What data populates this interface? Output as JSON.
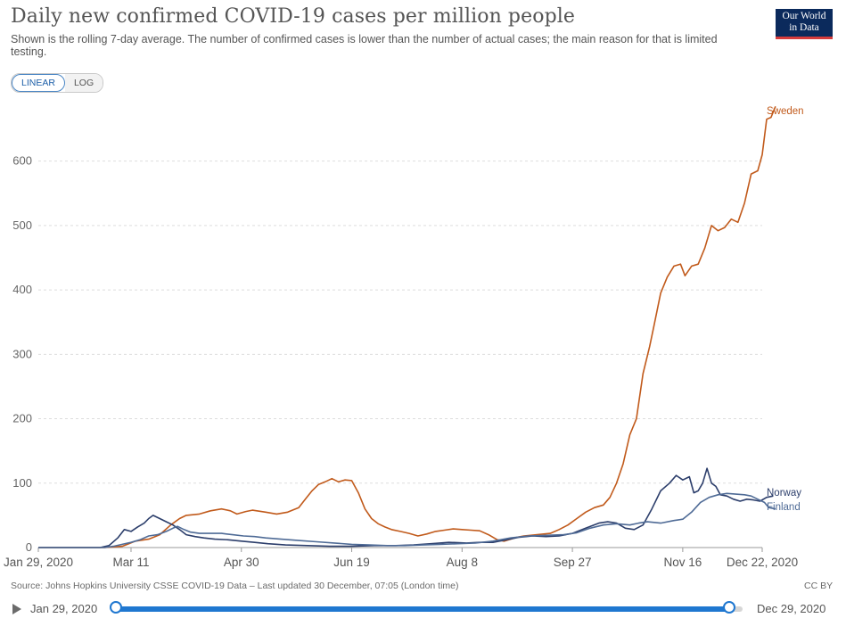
{
  "header": {
    "title": "Daily new confirmed COVID-19 cases per million people",
    "subtitle": "Shown is the rolling 7-day average. The number of confirmed cases is lower than the number of actual cases; the main reason for that is limited testing.",
    "logo_line1": "Our World",
    "logo_line2": "in Data",
    "logo_colors": {
      "background": "#0b2a5c",
      "stripe": "#d63c3c"
    }
  },
  "scale_toggle": {
    "linear_label": "LINEAR",
    "log_label": "LOG",
    "selected": "LINEAR"
  },
  "footer": {
    "source": "Source: Johns Hopkins University CSSE COVID-19 Data – Last updated 30 December, 07:05 (London time)",
    "license": "CC BY"
  },
  "timeline": {
    "start_label": "Jan 29, 2020",
    "end_label": "Dec 29, 2020",
    "play_icon": "play-icon"
  },
  "chart_data": {
    "type": "line",
    "title": "Daily new confirmed COVID-19 cases per million people",
    "xlabel": "",
    "ylabel": "",
    "ylim": [
      0,
      680
    ],
    "y_ticks": [
      0,
      100,
      200,
      300,
      400,
      500,
      600
    ],
    "x_ticks": [
      {
        "day": 0,
        "label": "Jan 29, 2020"
      },
      {
        "day": 42,
        "label": "Mar 11"
      },
      {
        "day": 92,
        "label": "Apr 30"
      },
      {
        "day": 142,
        "label": "Jun 19"
      },
      {
        "day": 192,
        "label": "Aug 8"
      },
      {
        "day": 242,
        "label": "Sep 27"
      },
      {
        "day": 292,
        "label": "Nov 16"
      },
      {
        "day": 328,
        "label": "Dec 22, 2020"
      }
    ],
    "grid": "horizontal dashed",
    "legend": "labels at line ends (right)",
    "series": [
      {
        "name": "Sweden",
        "color": "#c15a1b",
        "points": [
          [
            0,
            0
          ],
          [
            30,
            0
          ],
          [
            38,
            2
          ],
          [
            41,
            6
          ],
          [
            44,
            10
          ],
          [
            50,
            13
          ],
          [
            55,
            20
          ],
          [
            60,
            35
          ],
          [
            64,
            45
          ],
          [
            67,
            50
          ],
          [
            73,
            52
          ],
          [
            78,
            57
          ],
          [
            83,
            60
          ],
          [
            87,
            57
          ],
          [
            90,
            52
          ],
          [
            94,
            56
          ],
          [
            97,
            58
          ],
          [
            103,
            55
          ],
          [
            108,
            52
          ],
          [
            113,
            55
          ],
          [
            118,
            62
          ],
          [
            121,
            75
          ],
          [
            124,
            88
          ],
          [
            127,
            98
          ],
          [
            130,
            102
          ],
          [
            133,
            107
          ],
          [
            136,
            102
          ],
          [
            139,
            105
          ],
          [
            142,
            104
          ],
          [
            145,
            85
          ],
          [
            148,
            60
          ],
          [
            151,
            45
          ],
          [
            154,
            37
          ],
          [
            157,
            32
          ],
          [
            160,
            28
          ],
          [
            164,
            25
          ],
          [
            168,
            22
          ],
          [
            172,
            18
          ],
          [
            176,
            21
          ],
          [
            180,
            25
          ],
          [
            184,
            27
          ],
          [
            188,
            29
          ],
          [
            192,
            28
          ],
          [
            196,
            27
          ],
          [
            200,
            26
          ],
          [
            204,
            20
          ],
          [
            208,
            12
          ],
          [
            211,
            10
          ],
          [
            214,
            13
          ],
          [
            217,
            16
          ],
          [
            220,
            18
          ],
          [
            226,
            20
          ],
          [
            232,
            22
          ],
          [
            236,
            28
          ],
          [
            240,
            35
          ],
          [
            244,
            45
          ],
          [
            248,
            55
          ],
          [
            252,
            62
          ],
          [
            256,
            66
          ],
          [
            259,
            78
          ],
          [
            262,
            100
          ],
          [
            265,
            130
          ],
          [
            268,
            175
          ],
          [
            271,
            200
          ],
          [
            274,
            270
          ],
          [
            277,
            312
          ],
          [
            279,
            345
          ],
          [
            282,
            395
          ],
          [
            285,
            420
          ],
          [
            288,
            437
          ],
          [
            291,
            440
          ],
          [
            293,
            422
          ],
          [
            296,
            437
          ],
          [
            299,
            440
          ],
          [
            302,
            465
          ],
          [
            305,
            500
          ],
          [
            308,
            492
          ],
          [
            311,
            497
          ],
          [
            314,
            510
          ],
          [
            317,
            505
          ],
          [
            320,
            535
          ],
          [
            323,
            580
          ],
          [
            326,
            585
          ],
          [
            328,
            610
          ],
          [
            330,
            665
          ],
          [
            332,
            668
          ],
          [
            334,
            685
          ]
        ]
      },
      {
        "name": "Norway",
        "color": "#2c3e6b",
        "points": [
          [
            0,
            0
          ],
          [
            28,
            0
          ],
          [
            32,
            3
          ],
          [
            36,
            15
          ],
          [
            39,
            28
          ],
          [
            42,
            25
          ],
          [
            45,
            32
          ],
          [
            48,
            38
          ],
          [
            50,
            45
          ],
          [
            52,
            50
          ],
          [
            55,
            45
          ],
          [
            58,
            40
          ],
          [
            61,
            35
          ],
          [
            64,
            28
          ],
          [
            67,
            20
          ],
          [
            71,
            17
          ],
          [
            75,
            15
          ],
          [
            80,
            13
          ],
          [
            86,
            12
          ],
          [
            92,
            10
          ],
          [
            98,
            8
          ],
          [
            104,
            6
          ],
          [
            112,
            4
          ],
          [
            122,
            3
          ],
          [
            132,
            2
          ],
          [
            142,
            2
          ],
          [
            152,
            3
          ],
          [
            162,
            3
          ],
          [
            170,
            4
          ],
          [
            178,
            6
          ],
          [
            186,
            8
          ],
          [
            194,
            7
          ],
          [
            200,
            8
          ],
          [
            206,
            8
          ],
          [
            212,
            12
          ],
          [
            218,
            16
          ],
          [
            224,
            18
          ],
          [
            230,
            17
          ],
          [
            236,
            18
          ],
          [
            242,
            22
          ],
          [
            248,
            30
          ],
          [
            254,
            38
          ],
          [
            258,
            40
          ],
          [
            262,
            38
          ],
          [
            266,
            30
          ],
          [
            270,
            28
          ],
          [
            274,
            35
          ],
          [
            278,
            60
          ],
          [
            282,
            88
          ],
          [
            286,
            100
          ],
          [
            289,
            112
          ],
          [
            292,
            105
          ],
          [
            295,
            110
          ],
          [
            297,
            85
          ],
          [
            299,
            88
          ],
          [
            301,
            100
          ],
          [
            303,
            123
          ],
          [
            305,
            100
          ],
          [
            307,
            95
          ],
          [
            309,
            82
          ],
          [
            312,
            80
          ],
          [
            315,
            75
          ],
          [
            318,
            72
          ],
          [
            321,
            75
          ],
          [
            324,
            74
          ],
          [
            327,
            72
          ],
          [
            330,
            78
          ],
          [
            333,
            80
          ]
        ]
      },
      {
        "name": "Finland",
        "color": "#4f6b96",
        "points": [
          [
            0,
            0
          ],
          [
            30,
            0
          ],
          [
            34,
            2
          ],
          [
            38,
            5
          ],
          [
            42,
            8
          ],
          [
            46,
            12
          ],
          [
            50,
            18
          ],
          [
            54,
            20
          ],
          [
            58,
            25
          ],
          [
            61,
            30
          ],
          [
            63,
            33
          ],
          [
            66,
            28
          ],
          [
            69,
            24
          ],
          [
            73,
            22
          ],
          [
            78,
            22
          ],
          [
            83,
            22
          ],
          [
            88,
            20
          ],
          [
            93,
            18
          ],
          [
            98,
            17
          ],
          [
            103,
            15
          ],
          [
            110,
            13
          ],
          [
            118,
            11
          ],
          [
            126,
            9
          ],
          [
            134,
            7
          ],
          [
            142,
            5
          ],
          [
            150,
            4
          ],
          [
            158,
            3
          ],
          [
            166,
            3
          ],
          [
            174,
            4
          ],
          [
            182,
            5
          ],
          [
            190,
            6
          ],
          [
            198,
            7
          ],
          [
            206,
            10
          ],
          [
            214,
            15
          ],
          [
            222,
            18
          ],
          [
            230,
            19
          ],
          [
            238,
            20
          ],
          [
            244,
            23
          ],
          [
            250,
            30
          ],
          [
            256,
            35
          ],
          [
            262,
            37
          ],
          [
            268,
            35
          ],
          [
            272,
            38
          ],
          [
            276,
            40
          ],
          [
            282,
            38
          ],
          [
            288,
            42
          ],
          [
            292,
            44
          ],
          [
            296,
            55
          ],
          [
            300,
            70
          ],
          [
            304,
            78
          ],
          [
            308,
            82
          ],
          [
            312,
            84
          ],
          [
            316,
            83
          ],
          [
            320,
            82
          ],
          [
            323,
            80
          ],
          [
            326,
            75
          ],
          [
            329,
            70
          ],
          [
            331,
            62
          ],
          [
            334,
            60
          ]
        ]
      }
    ]
  }
}
